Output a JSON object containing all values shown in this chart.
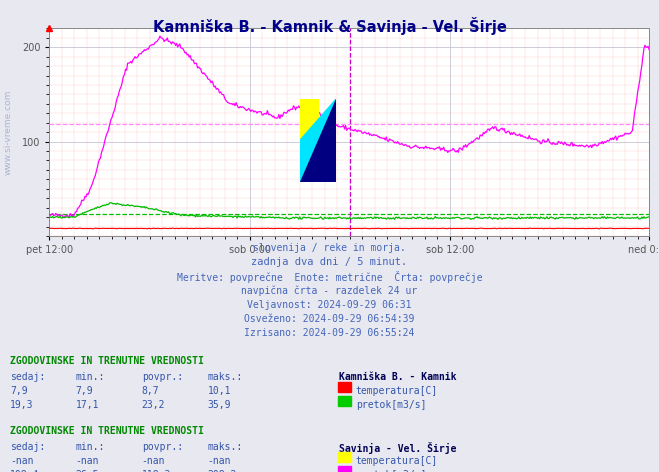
{
  "title": "Kamniška B. - Kamnik & Savinja - Vel. Širje",
  "title_color": "#00008B",
  "bg_color": "#e8e8f0",
  "plot_bg_color": "#ffffff",
  "ylim": [
    0,
    220
  ],
  "yticks": [
    100,
    200
  ],
  "xlabels": [
    "pet 12:00",
    "sob 0:00",
    "sob 12:00",
    "ned 0:00"
  ],
  "pink_line_avg": 118.3,
  "green_line_avg": 23.2,
  "watermark_color": "#1a3a8a",
  "watermark_alpha": 0.3,
  "subtitle_lines": [
    "slovenija / reke in morja.",
    "zadnja dva dni / 5 minut.",
    "Meritve: povprečne  Enote: metrične  Črta: povprečje",
    "navpična črta - razdelek 24 ur",
    "Veljavnost: 2024-09-29 06:31",
    "Osveženo: 2024-09-29 06:54:39",
    "Izrisano: 2024-09-29 06:55:24"
  ]
}
